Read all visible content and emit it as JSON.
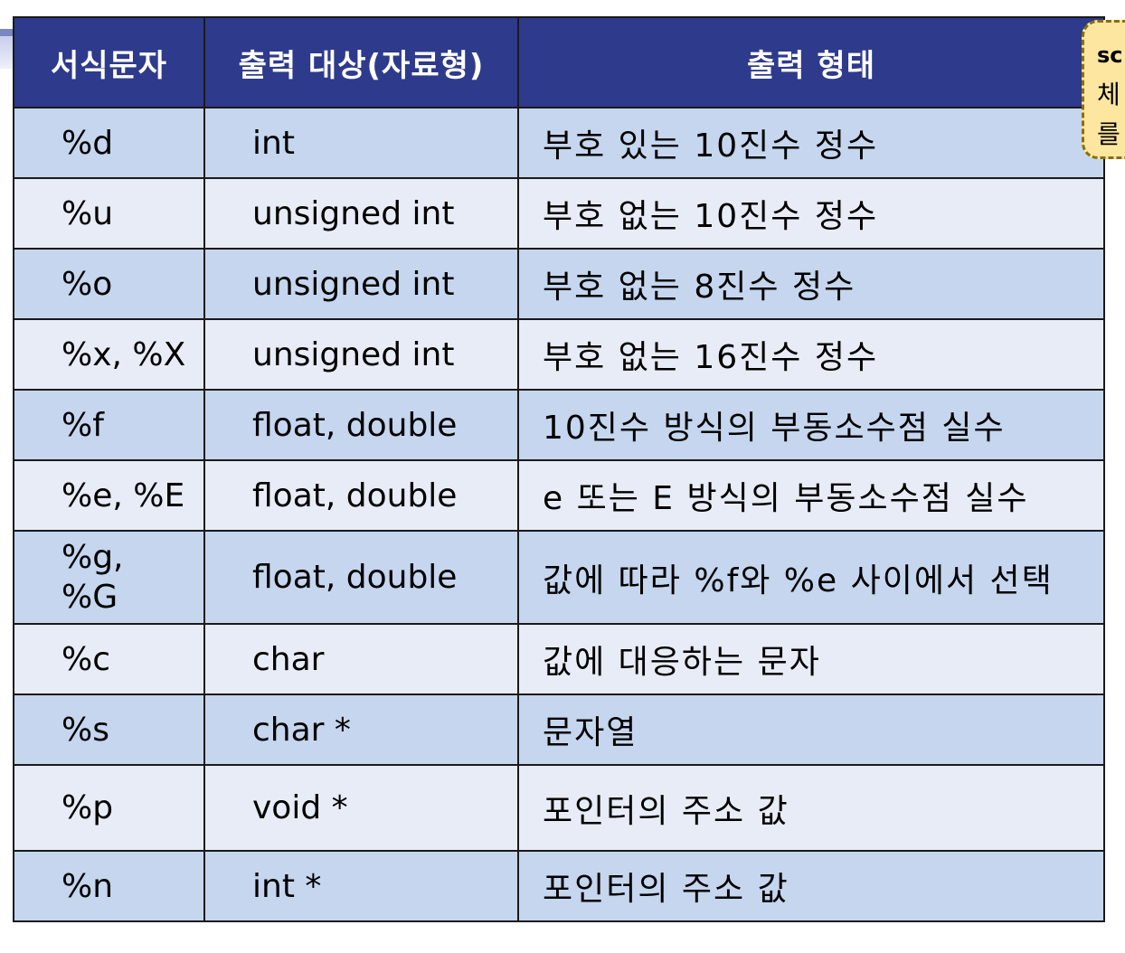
{
  "table": {
    "headers": [
      "서식문자",
      "출력 대상(자료형)",
      "출력 형태"
    ],
    "rows": [
      {
        "spec": "%d",
        "type": "int",
        "desc": "부호 있는 10진수 정수"
      },
      {
        "spec": "%u",
        "type": "unsigned int",
        "desc": "부호 없는 10진수 정수"
      },
      {
        "spec": "%o",
        "type": "unsigned int",
        "desc": "부호 없는 8진수 정수"
      },
      {
        "spec": "%x, %X",
        "type": "unsigned int",
        "desc": "부호 없는 16진수 정수"
      },
      {
        "spec": "%f",
        "type": "float, double",
        "desc": "10진수 방식의 부동소수점 실수"
      },
      {
        "spec": "%e, %E",
        "type": "float, double",
        "desc": "e 또는 E 방식의 부동소수점 실수"
      },
      {
        "spec": "%g, %G",
        "type": "float, double",
        "desc": "값에 따라 %f와 %e 사이에서 선택"
      },
      {
        "spec": "%c",
        "type": "char",
        "desc": "값에 대응하는 문자"
      },
      {
        "spec": "%s",
        "type": "char *",
        "desc": "문자열"
      },
      {
        "spec": "%p",
        "type": "void *",
        "desc": "포인터의 주소 값"
      },
      {
        "spec": "%n",
        "type": "int *",
        "desc": "포인터의 주소 값"
      }
    ]
  },
  "callout": {
    "lines": [
      "sc",
      "체",
      "를"
    ]
  },
  "colors": {
    "header_bg": "#2e3a8c",
    "row_odd": "#c5d6ee",
    "row_even": "#e7ecf6",
    "callout_bg": "#fde6a0"
  }
}
